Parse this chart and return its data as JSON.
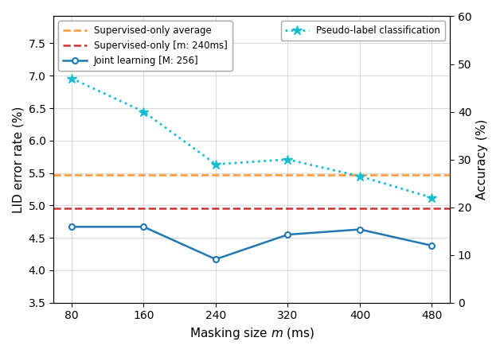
{
  "x": [
    80,
    160,
    240,
    320,
    400,
    480
  ],
  "joint_learning": [
    4.67,
    4.67,
    4.17,
    4.55,
    4.63,
    4.38
  ],
  "pseudo_label_accuracy": [
    47.0,
    40.0,
    29.0,
    30.0,
    26.5,
    22.0
  ],
  "supervised_only_avg": 5.47,
  "supervised_only_best": 4.95,
  "joint_color": "#1f77b4",
  "pseudo_color": "#17becf",
  "supervised_avg_color": "#ff9933",
  "supervised_best_color": "#cc3333",
  "left_ylim": [
    3.5,
    7.9166
  ],
  "right_ylim": [
    0,
    60
  ],
  "left_yticks": [
    3.5,
    4.0,
    4.5,
    5.0,
    5.5,
    6.0,
    6.5,
    7.0,
    7.5
  ],
  "right_yticks": [
    0,
    10,
    20,
    30,
    40,
    50,
    60
  ],
  "xlabel": "Masking size $m$ (ms)",
  "ylabel_left": "LID error rate (%)",
  "ylabel_right": "Accuracy (%)",
  "legend_supervised_avg": "Supervised-only average",
  "legend_supervised_best": "Supervised-only [m: 240ms]",
  "legend_joint": "Joint learning [M: 256]",
  "legend_pseudo": "Pseudo-label classification",
  "xlim": [
    60,
    500
  ]
}
